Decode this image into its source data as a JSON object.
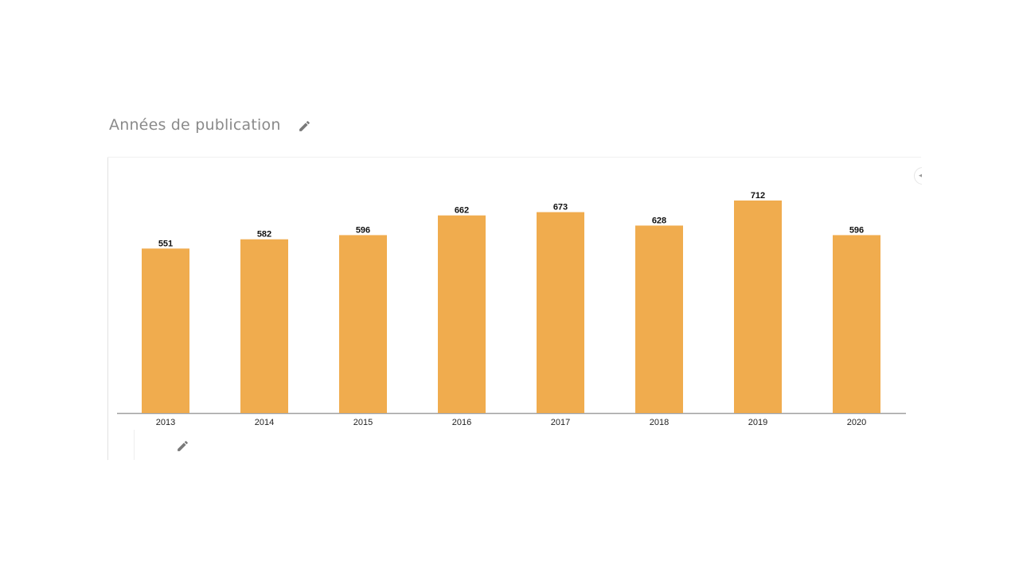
{
  "header": {
    "title": "Années de publication",
    "edit_icon": "pencil-icon"
  },
  "footer": {
    "edit_icon": "pencil-icon"
  },
  "colors": {
    "bar": "#F0AC4E",
    "title": "#8a8a8a",
    "axis": "#a0a0a0"
  },
  "chart_data": {
    "type": "bar",
    "categories": [
      "2013",
      "2014",
      "2015",
      "2016",
      "2017",
      "2018",
      "2019",
      "2020"
    ],
    "values": [
      551,
      582,
      596,
      662,
      673,
      628,
      712,
      596
    ],
    "title": "",
    "xlabel": "",
    "ylabel": "",
    "ylim": [
      0,
      770
    ],
    "data_labels": true,
    "grid": false,
    "legend": "none"
  }
}
